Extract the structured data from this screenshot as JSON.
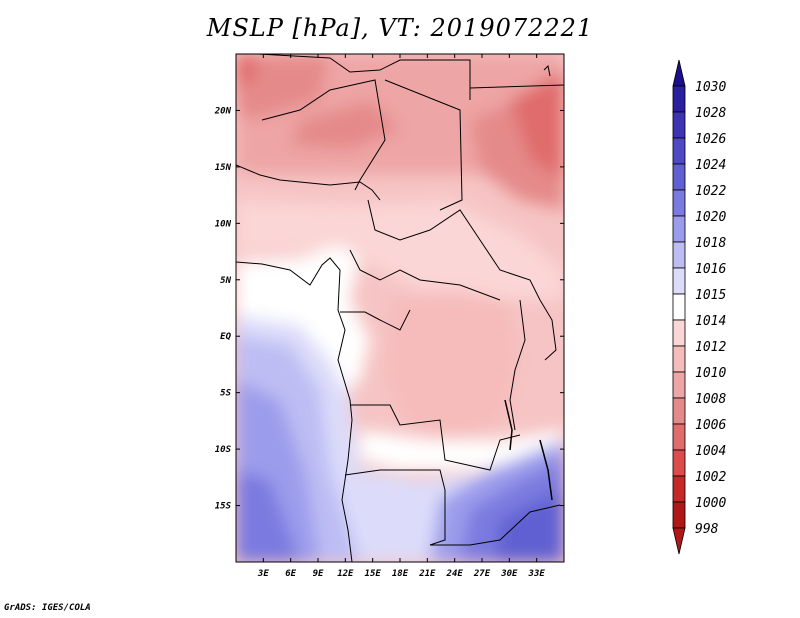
{
  "title": "MSLP [hPa], VT: 2019072221",
  "credit": "GrADS: IGES/COLA",
  "map": {
    "lon_range": [
      0,
      36
    ],
    "lat_range": [
      -20,
      25
    ],
    "lon_ticks": [
      "3E",
      "6E",
      "9E",
      "12E",
      "15E",
      "18E",
      "21E",
      "24E",
      "27E",
      "30E",
      "33E"
    ],
    "lat_ticks": [
      "20N",
      "15N",
      "10N",
      "5N",
      "EQ",
      "5S",
      "10S",
      "15S"
    ]
  },
  "colorbar": {
    "levels": [
      "1030",
      "1028",
      "1026",
      "1024",
      "1022",
      "1020",
      "1018",
      "1016",
      "1015",
      "1014",
      "1012",
      "1010",
      "1008",
      "1006",
      "1004",
      "1002",
      "1000",
      "998"
    ],
    "colors": [
      "#1a0f8c",
      "#2a1fa0",
      "#3d34b4",
      "#4f49c4",
      "#6160d2",
      "#7a7ae0",
      "#9c9cec",
      "#bdbdf4",
      "#dcdcfa",
      "#ffffff",
      "#fbd6d6",
      "#f6bcbc",
      "#eea5a5",
      "#e58a8a",
      "#e06c6c",
      "#dc4c4c",
      "#c62828",
      "#b01818"
    ]
  }
}
